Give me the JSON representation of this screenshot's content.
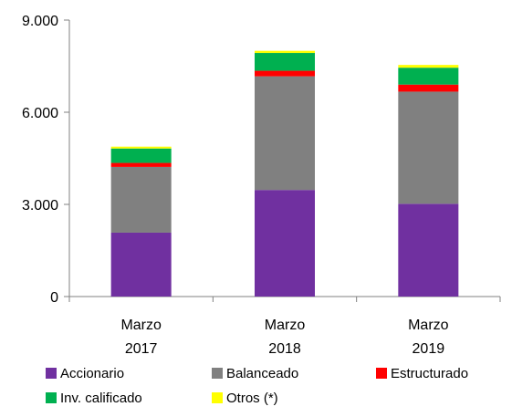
{
  "chart_data": {
    "type": "bar",
    "stacked": true,
    "categories": [
      [
        "Marzo",
        "2017"
      ],
      [
        "Marzo",
        "2018"
      ],
      [
        "Marzo",
        "2019"
      ]
    ],
    "ylim": [
      0,
      9000
    ],
    "yticks": [
      {
        "value": 0,
        "label": "0"
      },
      {
        "value": 3000,
        "label": "3.000"
      },
      {
        "value": 6000,
        "label": "6.000"
      },
      {
        "value": 9000,
        "label": "9.000"
      }
    ],
    "grid": false,
    "legend_position": "bottom",
    "series": [
      {
        "name": "Accionario",
        "color": "#7030A0",
        "values": [
          2080,
          3470,
          3020
        ]
      },
      {
        "name": "Balanceado",
        "color": "#808080",
        "values": [
          2140,
          3700,
          3650
        ]
      },
      {
        "name": "Estructurado",
        "color": "#FF0000",
        "values": [
          130,
          180,
          230
        ]
      },
      {
        "name": "Inv. calificado",
        "color": "#00B050",
        "values": [
          470,
          580,
          550
        ]
      },
      {
        "name": "Otros (*)",
        "color": "#FFFF00",
        "values": [
          60,
          70,
          90
        ]
      }
    ]
  }
}
